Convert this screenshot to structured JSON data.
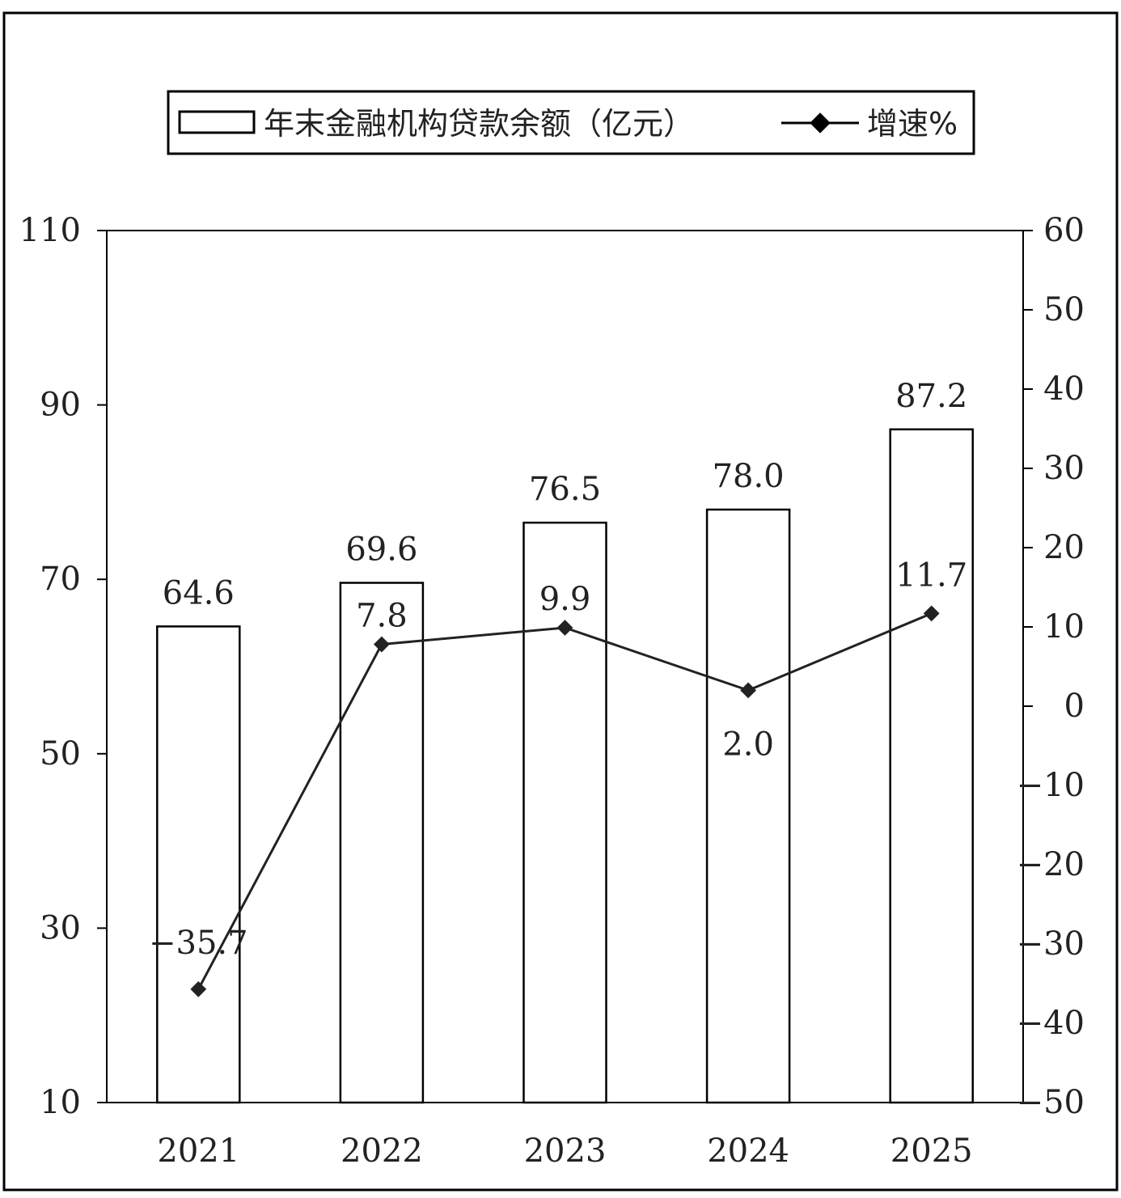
{
  "chart_data": {
    "type": "bar",
    "categories": [
      "2021",
      "2022",
      "2023",
      "2024",
      "2025"
    ],
    "series": [
      {
        "name": "年末金融机构贷款余额（亿元）",
        "type": "bar",
        "axis": "left",
        "values": [
          64.6,
          69.6,
          76.5,
          78.0,
          87.2
        ],
        "labels": [
          "64.6",
          "69.6",
          "76.5",
          "78.0",
          "87.2"
        ]
      },
      {
        "name": "增速%",
        "type": "line",
        "axis": "right",
        "values": [
          -35.7,
          7.8,
          9.9,
          2.0,
          11.7
        ],
        "labels": [
          "-35.7",
          "7.8",
          "9.9",
          "2.0",
          "11.7"
        ]
      }
    ],
    "left_axis": {
      "ylim": [
        10,
        110
      ],
      "ticks": [
        "10",
        "30",
        "50",
        "70",
        "90",
        "110"
      ]
    },
    "right_axis": {
      "ylim": [
        -50,
        60
      ],
      "ticks": [
        "-50",
        "-40",
        "-30",
        "-20",
        "-10",
        "0",
        "10",
        "20",
        "30",
        "40",
        "50",
        "60"
      ]
    },
    "legend": {
      "placement": "top-center"
    },
    "grid": false
  },
  "colors": {
    "bar_fill": "#ffffff",
    "stroke": "#000000",
    "line": "#222222",
    "text": "#222222"
  }
}
